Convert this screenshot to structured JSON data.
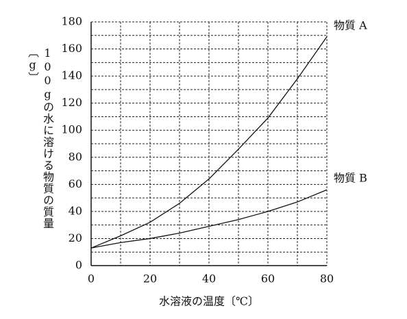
{
  "chart_data": {
    "type": "line",
    "xlabel": "水溶液の温度〔℃〕",
    "ylabel": "100gの水に溶ける物質の質量〔g〕",
    "x": [
      0,
      10,
      20,
      30,
      40,
      50,
      60,
      70,
      80
    ],
    "series": [
      {
        "name": "物質 A",
        "color": "#111111",
        "values": [
          13,
          22,
          32,
          46,
          64,
          86,
          109,
          138,
          169
        ]
      },
      {
        "name": "物質 B",
        "color": "#111111",
        "values": [
          13,
          17,
          20,
          24,
          29,
          34,
          40,
          47,
          56
        ]
      }
    ],
    "xlim": [
      0,
      80
    ],
    "xticks": [
      0,
      20,
      40,
      60,
      80
    ],
    "ylim": [
      0,
      180
    ],
    "yticks": [
      0,
      20,
      40,
      60,
      80,
      100,
      120,
      140,
      160,
      180
    ],
    "grid": true
  }
}
